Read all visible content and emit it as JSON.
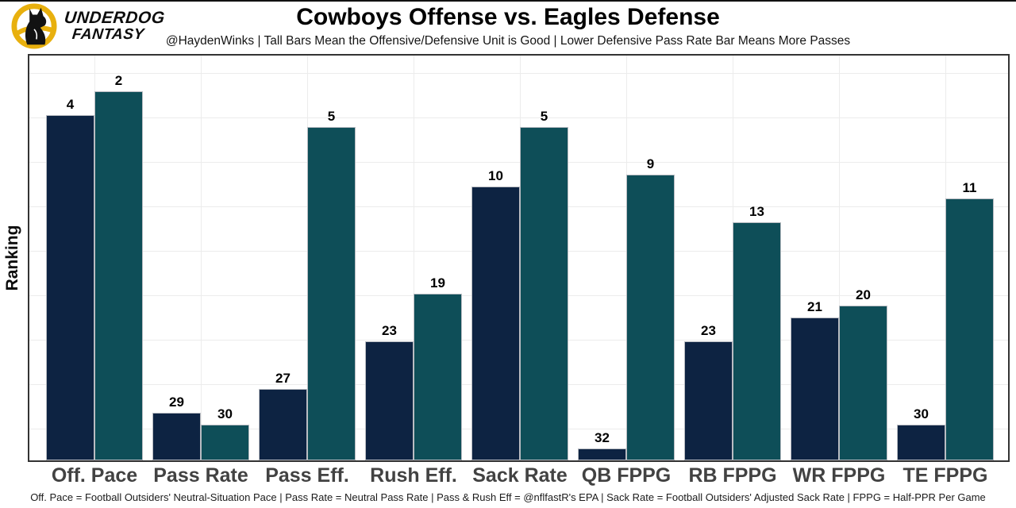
{
  "header": {
    "brand": {
      "line1": "UNDERDOG",
      "line2": "FANTASY"
    },
    "title": "Cowboys Offense vs. Eagles Defense",
    "subtitle": "@HaydenWinks | Tall Bars Mean the Offensive/Defensive Unit is Good | Lower Defensive Pass Rate Bar Means More Passes"
  },
  "chart_data": {
    "type": "bar",
    "title": "Cowboys Offense vs. Eagles Defense",
    "ylabel": "Ranking",
    "categories": [
      "Off. Pace",
      "Pass Rate",
      "Pass Eff.",
      "Rush Eff.",
      "Sack Rate",
      "QB FPPG",
      "RB FPPG",
      "WR FPPG",
      "TE FPPG"
    ],
    "series": [
      {
        "name": "Cowboys Offense",
        "color": "#0d2342",
        "values": [
          4,
          29,
          27,
          23,
          10,
          32,
          23,
          21,
          30
        ]
      },
      {
        "name": "Eagles Defense",
        "color": "#0e4e58",
        "values": [
          2,
          30,
          5,
          19,
          5,
          9,
          13,
          20,
          11
        ]
      }
    ],
    "value_labels_shown": true,
    "rank_scale": {
      "best_rank": 1,
      "worst_rank": 32,
      "bar_height_units": "33 - rank",
      "axis_total_units": 34
    },
    "grid": true,
    "legend": false
  },
  "footer": {
    "note": "Off. Pace = Football Outsiders' Neutral-Situation Pace | Pass Rate = Neutral Pass Rate | Pass & Rush Eff = @nflfastR's EPA | Sack Rate = Football Outsiders' Adjusted Sack Rate | FPPG = Half-PPR Per Game"
  },
  "colors": {
    "offense_bar": "#0d2342",
    "defense_bar": "#0e4e58",
    "bar_stroke": "#b9bcc2",
    "brand_gold": "#e8b00e",
    "plot_border": "#333333",
    "gridline": "#ececec",
    "category_label": "#424242"
  }
}
